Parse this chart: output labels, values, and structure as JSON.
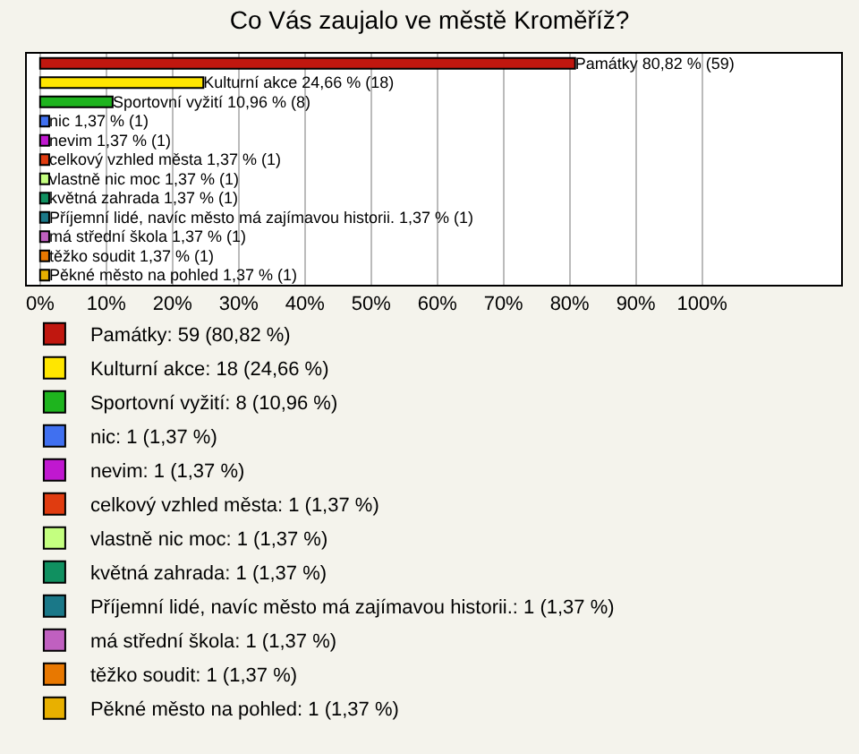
{
  "chart_data": {
    "type": "bar",
    "orientation": "horizontal",
    "title": "Co Vás zaujalo ve městě Kroměříž?",
    "categories": [
      null,
      null,
      null,
      null,
      null,
      null,
      null,
      null,
      null,
      null,
      null,
      null
    ],
    "series": [
      {
        "name": "Památky: 59 (80,82 %)",
        "color": "#c0170f",
        "values": [
          80.82,
          null,
          null,
          null,
          null,
          null,
          null,
          null,
          null,
          null,
          null,
          null
        ],
        "value_labels": [
          "Památky 80,82 % (59)",
          null,
          null,
          null,
          null,
          null,
          null,
          null,
          null,
          null,
          null,
          null
        ]
      },
      {
        "name": "Kulturní akce: 18 (24,66 %)",
        "color": "#ffe600",
        "values": [
          null,
          24.66,
          null,
          null,
          null,
          null,
          null,
          null,
          null,
          null,
          null,
          null
        ],
        "value_labels": [
          null,
          "Kulturní akce 24,66 % (18)",
          null,
          null,
          null,
          null,
          null,
          null,
          null,
          null,
          null,
          null
        ]
      },
      {
        "name": "Sportovní vyžití: 8 (10,96 %)",
        "color": "#1eb41e",
        "values": [
          null,
          null,
          10.96,
          null,
          null,
          null,
          null,
          null,
          null,
          null,
          null,
          null
        ],
        "value_labels": [
          null,
          null,
          "Sportovní vyžití 10,96 % (8)",
          null,
          null,
          null,
          null,
          null,
          null,
          null,
          null,
          null
        ]
      },
      {
        "name": "nic: 1 (1,37 %)",
        "color": "#4070f0",
        "values": [
          null,
          null,
          null,
          1.37,
          null,
          null,
          null,
          null,
          null,
          null,
          null,
          null
        ],
        "value_labels": [
          null,
          null,
          null,
          "nic 1,37 % (1)",
          null,
          null,
          null,
          null,
          null,
          null,
          null,
          null
        ]
      },
      {
        "name": "nevim: 1 (1,37 %)",
        "color": "#c018d0",
        "values": [
          null,
          null,
          null,
          null,
          1.37,
          null,
          null,
          null,
          null,
          null,
          null,
          null
        ],
        "value_labels": [
          null,
          null,
          null,
          null,
          "nevim 1,37 % (1)",
          null,
          null,
          null,
          null,
          null,
          null,
          null
        ]
      },
      {
        "name": "celkový vzhled města: 1 (1,37 %)",
        "color": "#e03c10",
        "values": [
          null,
          null,
          null,
          null,
          null,
          1.37,
          null,
          null,
          null,
          null,
          null,
          null
        ],
        "value_labels": [
          null,
          null,
          null,
          null,
          null,
          "celkový vzhled města 1,37 % (1)",
          null,
          null,
          null,
          null,
          null,
          null
        ]
      },
      {
        "name": "vlastně nic moc: 1 (1,37 %)",
        "color": "#c4ff80",
        "values": [
          null,
          null,
          null,
          null,
          null,
          null,
          1.37,
          null,
          null,
          null,
          null,
          null
        ],
        "value_labels": [
          null,
          null,
          null,
          null,
          null,
          null,
          "vlastně nic moc 1,37 % (1)",
          null,
          null,
          null,
          null,
          null
        ]
      },
      {
        "name": "květná zahrada: 1 (1,37 %)",
        "color": "#109060",
        "values": [
          null,
          null,
          null,
          null,
          null,
          null,
          null,
          1.37,
          null,
          null,
          null,
          null
        ],
        "value_labels": [
          null,
          null,
          null,
          null,
          null,
          null,
          null,
          "květná zahrada 1,37 % (1)",
          null,
          null,
          null,
          null
        ]
      },
      {
        "name": "Příjemní lidé, navíc město má zajímavou historii.: 1 (1,37 %)",
        "color": "#1a7888",
        "values": [
          null,
          null,
          null,
          null,
          null,
          null,
          null,
          null,
          1.37,
          null,
          null,
          null
        ],
        "value_labels": [
          null,
          null,
          null,
          null,
          null,
          null,
          null,
          null,
          "Příjemní lidé, navíc město má zajímavou historii. 1,37 % (1)",
          null,
          null,
          null
        ]
      },
      {
        "name": "má střední škola: 1 (1,37 %)",
        "color": "#c060c0",
        "values": [
          null,
          null,
          null,
          null,
          null,
          null,
          null,
          null,
          null,
          1.37,
          null,
          null
        ],
        "value_labels": [
          null,
          null,
          null,
          null,
          null,
          null,
          null,
          null,
          null,
          "má střední škola 1,37 % (1)",
          null,
          null
        ]
      },
      {
        "name": "těžko soudit: 1 (1,37 %)",
        "color": "#e87800",
        "values": [
          null,
          null,
          null,
          null,
          null,
          null,
          null,
          null,
          null,
          null,
          1.37,
          null
        ],
        "value_labels": [
          null,
          null,
          null,
          null,
          null,
          null,
          null,
          null,
          null,
          null,
          "těžko soudit 1,37 % (1)",
          null
        ]
      },
      {
        "name": "Pěkné město na pohled: 1 (1,37 %)",
        "color": "#e8b000",
        "values": [
          null,
          null,
          null,
          null,
          null,
          null,
          null,
          null,
          null,
          null,
          null,
          1.37
        ],
        "value_labels": [
          null,
          null,
          null,
          null,
          null,
          null,
          null,
          null,
          null,
          null,
          null,
          "Pěkné město na pohled 1,37 % (1)"
        ]
      }
    ],
    "xlim": [
      -2,
      121
    ],
    "xticks": [
      {
        "value": 0,
        "label": "0%"
      },
      {
        "value": 10,
        "label": "10%"
      },
      {
        "value": 20,
        "label": "20%"
      },
      {
        "value": 30,
        "label": "30%"
      },
      {
        "value": 40,
        "label": "40%"
      },
      {
        "value": 50,
        "label": "50%"
      },
      {
        "value": 60,
        "label": "60%"
      },
      {
        "value": 70,
        "label": "70%"
      },
      {
        "value": 80,
        "label": "80%"
      },
      {
        "value": 90,
        "label": "90%"
      },
      {
        "value": 100,
        "label": "100%"
      }
    ],
    "grid": "x",
    "legend": "bottom",
    "tick_labels": "x"
  }
}
